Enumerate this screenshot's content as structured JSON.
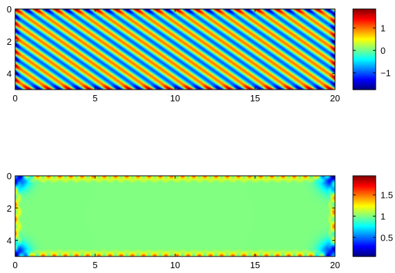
{
  "colormap": "jet",
  "chart_data": [
    {
      "type": "heatmap",
      "field": "plane-wave",
      "title": "",
      "xlabel": "",
      "ylabel": "",
      "xlim": [
        0,
        20
      ],
      "ylim": [
        0,
        5
      ],
      "y_reversed": true,
      "xticks": [
        "0",
        "5",
        "10",
        "15",
        "20"
      ],
      "yticks": [
        "0",
        "2",
        "4"
      ],
      "clim": [
        -1.75,
        1.85
      ],
      "colorbar_ticks": [
        "1",
        "0",
        "−1"
      ],
      "colorbar_tick_values": [
        1,
        0,
        -1
      ],
      "wave": {
        "kx": 5.0,
        "ky": -7.2,
        "amplitude": 1.0,
        "boundary_ringing": true
      }
    },
    {
      "type": "heatmap",
      "field": "modulus",
      "title": "",
      "xlabel": "",
      "ylabel": "",
      "xlim": [
        0,
        20
      ],
      "ylim": [
        0,
        5
      ],
      "y_reversed": true,
      "xticks": [
        "0",
        "5",
        "10",
        "15",
        "20"
      ],
      "yticks": [
        "0",
        "2",
        "4"
      ],
      "clim": [
        0.05,
        1.95
      ],
      "colorbar_ticks": [
        "1.5",
        "1",
        "0.5"
      ],
      "colorbar_tick_values": [
        1.5,
        1,
        0.5
      ],
      "interior_value": 1.0
    }
  ]
}
